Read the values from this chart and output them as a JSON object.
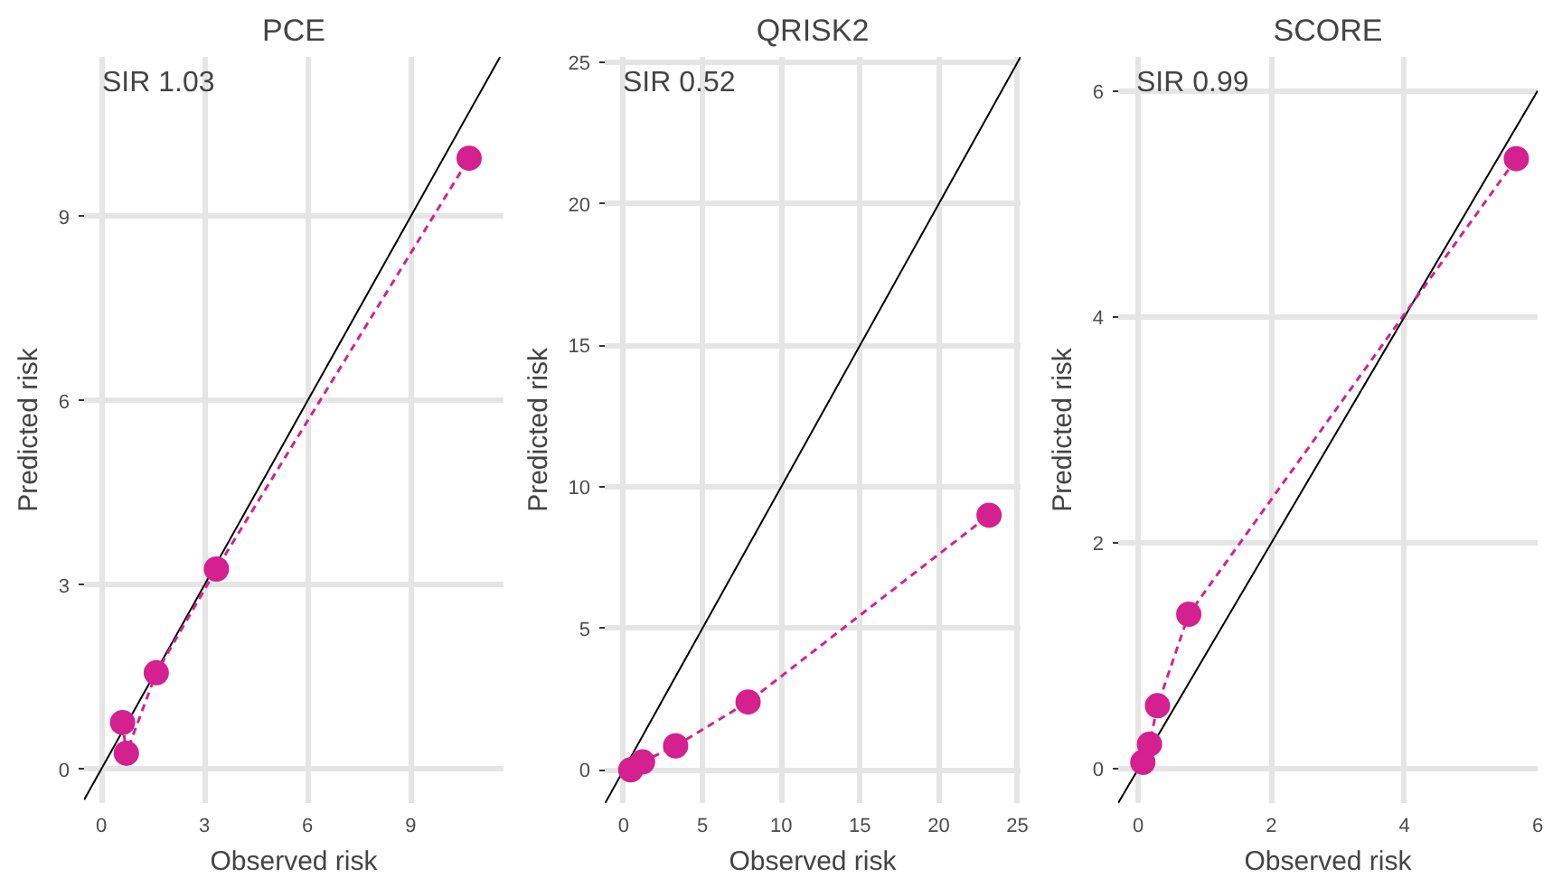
{
  "chart_data": [
    {
      "type": "line",
      "title": "PCE",
      "xlabel": "Observed risk",
      "ylabel": "Predicted risk",
      "annotations": [
        "SIR 1.03"
      ],
      "xlim": [
        -0.5,
        11.7
      ],
      "ylim": [
        -0.55,
        11.6
      ],
      "xticks": [
        0,
        3,
        6,
        9
      ],
      "yticks": [
        0,
        3,
        6,
        9
      ],
      "grid": true,
      "series": [
        {
          "color": "#000000",
          "marker": "none",
          "line_style": "solid",
          "x": [
            -0.5,
            11.6
          ],
          "values": [
            -0.5,
            11.6
          ]
        },
        {
          "color": "#d4218f",
          "marker": "circle",
          "line_style": "dashed",
          "x": [
            0.62,
            0.73,
            1.6,
            3.35,
            10.7
          ],
          "values": [
            0.76,
            0.26,
            1.57,
            3.26,
            9.95
          ]
        }
      ]
    },
    {
      "type": "line",
      "title": "QRISK2",
      "xlabel": "Observed risk",
      "ylabel": "Predicted risk",
      "annotations": [
        "SIR 0.52"
      ],
      "xlim": [
        -1.2,
        25.2
      ],
      "ylim": [
        -1.17,
        25.2
      ],
      "xticks": [
        0,
        5,
        10,
        15,
        20,
        25
      ],
      "yticks": [
        0,
        5,
        10,
        15,
        20,
        25
      ],
      "grid": true,
      "series": [
        {
          "color": "#000000",
          "marker": "none",
          "line_style": "solid",
          "x": [
            -1.17,
            25.2
          ],
          "values": [
            -1.17,
            25.2
          ]
        },
        {
          "color": "#d4218f",
          "marker": "circle",
          "line_style": "dashed",
          "x": [
            0.45,
            1.2,
            3.3,
            7.9,
            23.2
          ],
          "values": [
            0.0,
            0.28,
            0.85,
            2.4,
            9.0
          ]
        }
      ]
    },
    {
      "type": "line",
      "title": "SCORE",
      "xlabel": "Observed risk",
      "ylabel": "Predicted risk",
      "annotations": [
        "SIR 0.99"
      ],
      "xlim": [
        -0.3,
        6.0
      ],
      "ylim": [
        -0.3,
        6.3
      ],
      "xticks": [
        0,
        2,
        4,
        6
      ],
      "yticks": [
        0,
        2,
        4,
        6
      ],
      "grid": true,
      "series": [
        {
          "color": "#000000",
          "marker": "none",
          "line_style": "solid",
          "x": [
            -0.3,
            6.0
          ],
          "values": [
            -0.3,
            6.0
          ]
        },
        {
          "color": "#d4218f",
          "marker": "circle",
          "line_style": "dashed",
          "x": [
            0.07,
            0.17,
            0.29,
            0.76,
            5.68
          ],
          "values": [
            0.06,
            0.22,
            0.56,
            1.37,
            5.4
          ]
        }
      ]
    }
  ]
}
